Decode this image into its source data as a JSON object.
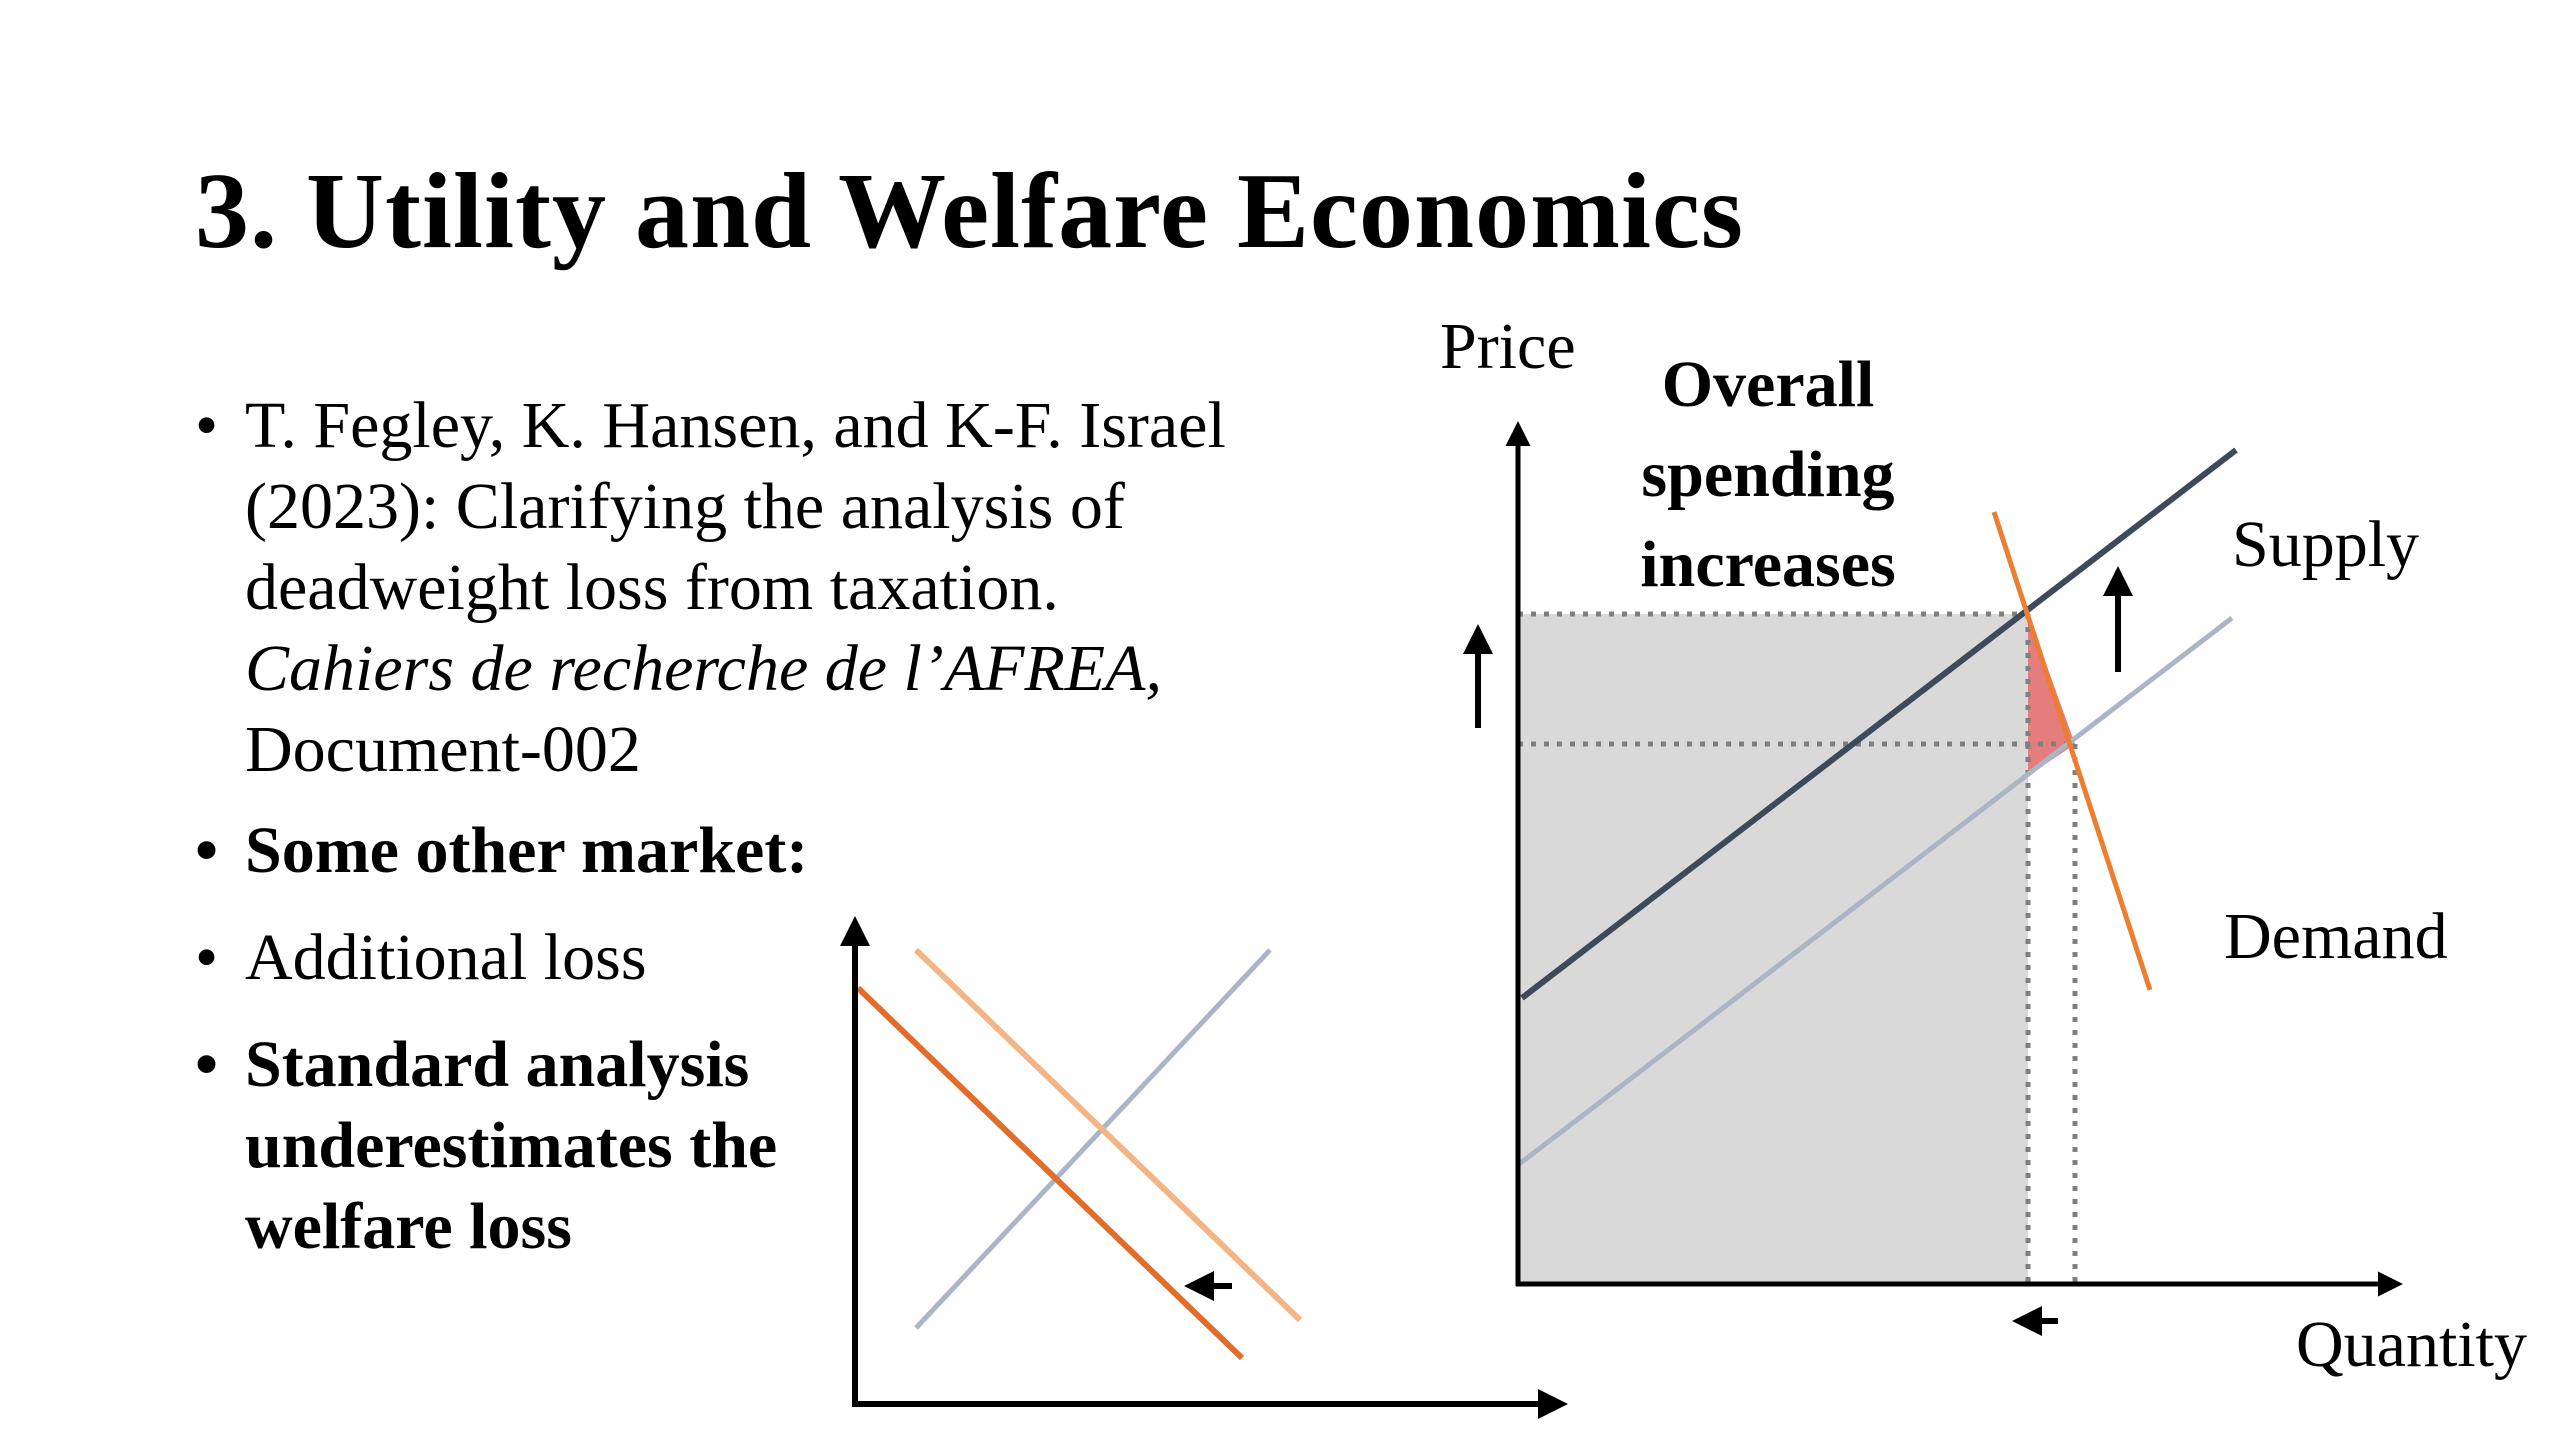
{
  "slide": {
    "title": "3. Utility and Welfare Economics"
  },
  "bullets": {
    "citation_authors": "T. Fegley, K. Hansen, and K-F. Israel (2023): Clarifying the analysis of deadweight loss from taxation.",
    "citation_journal": "Cahiers de recherche de l’AFREA,",
    "citation_document": "Document-002",
    "item2": "Some other market:",
    "item3": "Additional loss",
    "item4": "Standard analysis underestimates the welfare loss",
    "bullet_glyph": "•"
  },
  "main_diagram": {
    "y_axis_label": "Price",
    "x_axis_label": "Quantity",
    "annotation": [
      "Overall",
      "spending",
      "increases"
    ],
    "supply_label": "Supply",
    "demand_label": "Demand",
    "colors": {
      "supply_new": "#3d4a5c",
      "supply_old": "#aab6c8",
      "demand": "#ed7d31",
      "spending_area": "#d9d9d9",
      "deadweight_loss": "#e06666",
      "guide_lines": "#7f7f7f"
    }
  },
  "small_diagram": {
    "colors": {
      "demand_new": "#e06d2a",
      "demand_old": "#f3b486",
      "supply": "#aab6c8"
    }
  }
}
